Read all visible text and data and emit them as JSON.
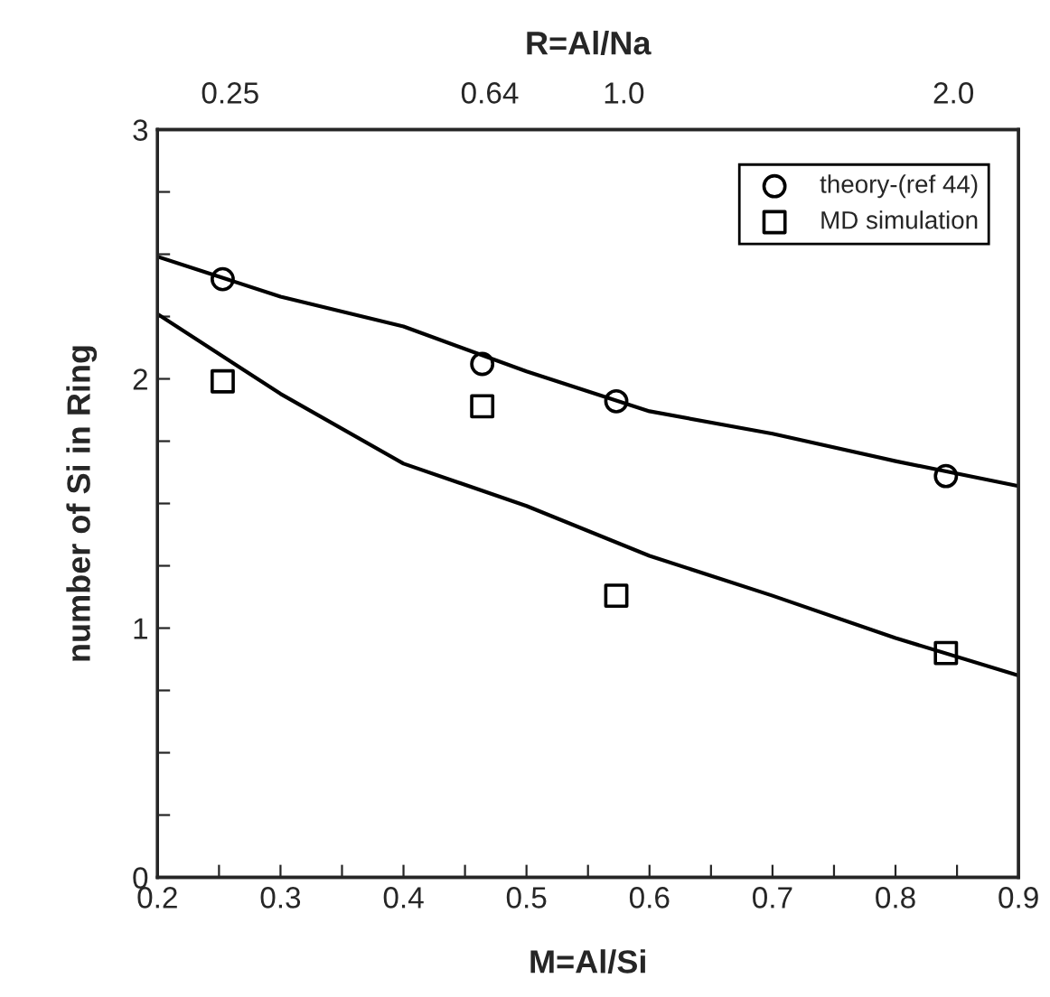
{
  "chart_data": {
    "type": "scatter",
    "xlabel": "M=Al/Si",
    "ylabel": "number of Si in Ring",
    "x2label": "R=Al/Na",
    "legend": "top right",
    "grid": false,
    "xlim": [
      0.2,
      0.9
    ],
    "ylim": [
      0,
      3
    ],
    "xticks": [
      0.2,
      {
        "value": 0.25,
        "label": null
      },
      0.3,
      {
        "value": 0.35,
        "label": null
      },
      0.4,
      {
        "value": 0.45,
        "label": null
      },
      0.5,
      {
        "value": 0.55,
        "label": null
      },
      0.6,
      {
        "value": 0.65,
        "label": null
      },
      0.7,
      {
        "value": 0.75,
        "label": null
      },
      0.8,
      {
        "value": 0.85,
        "label": null
      },
      0.9
    ],
    "yticks": [
      0,
      {
        "value": 0.25,
        "label": null
      },
      {
        "value": 0.5,
        "label": null
      },
      {
        "value": 0.75,
        "label": null
      },
      1,
      {
        "value": 1.25,
        "label": null
      },
      {
        "value": 1.5,
        "label": null
      },
      {
        "value": 1.75,
        "label": null
      },
      2,
      {
        "value": 2.25,
        "label": null
      },
      {
        "value": 2.5,
        "label": null
      },
      {
        "value": 2.75,
        "label": null
      },
      3
    ],
    "annotations": [
      "0.25",
      "0.64",
      "1.0",
      "2.0"
    ],
    "series": [
      {
        "name": "theory-(ref 44)",
        "marker": "circle",
        "color": "#000000",
        "x": [
          0.253,
          0.464,
          0.573,
          0.841
        ],
        "values": [
          2.4,
          2.06,
          1.91,
          1.61
        ]
      },
      {
        "name": "MD simulation",
        "marker": "square",
        "color": "#000000",
        "x": [
          0.253,
          0.464,
          0.573,
          0.841
        ],
        "values": [
          1.99,
          1.89,
          1.13,
          0.9
        ]
      },
      {
        "type": "line",
        "marker": "none",
        "line_style": "solid",
        "color": "#000000",
        "x": [
          0.2,
          0.3,
          0.4,
          0.5,
          0.6,
          0.7,
          0.8,
          0.9
        ],
        "values": [
          2.49,
          2.33,
          2.21,
          2.03,
          1.87,
          1.78,
          1.67,
          1.57
        ]
      },
      {
        "type": "line",
        "marker": "none",
        "line_style": "solid",
        "color": "#000000",
        "x": [
          0.2,
          0.3,
          0.4,
          0.5,
          0.6,
          0.7,
          0.8,
          0.9
        ],
        "values": [
          2.26,
          1.94,
          1.66,
          1.49,
          1.29,
          1.13,
          0.96,
          0.81
        ]
      }
    ]
  }
}
